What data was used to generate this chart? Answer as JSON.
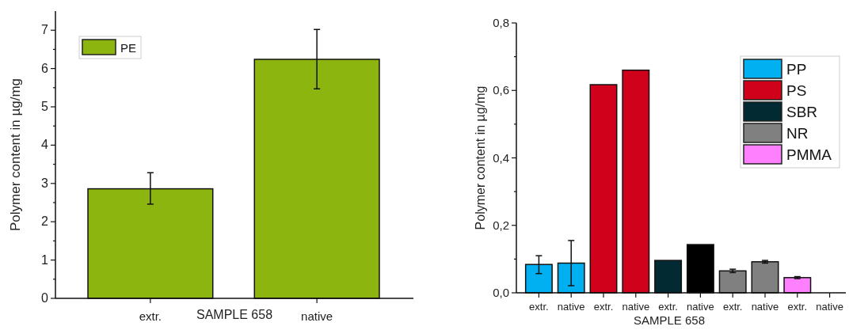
{
  "chart_data": [
    {
      "type": "bar",
      "categories": [
        "extr.",
        "native"
      ],
      "xlabel": "SAMPLE 658",
      "ylabel": "Polymer content in µg/mg",
      "ylim": [
        0,
        7.5
      ],
      "yticks": [
        0,
        {
          "value": 0.5,
          "label": null
        },
        1,
        {
          "value": 1.5,
          "label": null
        },
        2,
        {
          "value": 2.5,
          "label": null
        },
        3,
        {
          "value": 3.5,
          "label": null
        },
        4,
        {
          "value": 4.5,
          "label": null
        },
        5,
        {
          "value": 5.5,
          "label": null
        },
        6,
        {
          "value": 6.5,
          "label": null
        },
        7
      ],
      "legend": "top left",
      "series": [
        {
          "name": "PE",
          "color": "#8db510",
          "values": [
            2.86,
            6.24
          ],
          "errors": [
            [
              2.46,
              3.28
            ],
            [
              5.47,
              7.02
            ]
          ]
        }
      ]
    },
    {
      "type": "bar",
      "stacked": true,
      "categories": [
        "extr.",
        "native",
        "extr.",
        "native",
        "extr.",
        "native",
        "extr.",
        "native",
        "extr.",
        "native"
      ],
      "xlabel": "SAMPLE 658",
      "ylabel": "Polymer content in µg/mg",
      "ylim": [
        0,
        0.8
      ],
      "yticks": [
        {
          "value": 0,
          "label": "0,0"
        },
        {
          "value": 0.1,
          "label": null
        },
        {
          "value": 0.2,
          "label": "0,2"
        },
        {
          "value": 0.3,
          "label": null
        },
        {
          "value": 0.4,
          "label": "0,4"
        },
        {
          "value": 0.5,
          "label": null
        },
        {
          "value": 0.6,
          "label": "0,6"
        },
        {
          "value": 0.7,
          "label": null
        },
        {
          "value": 0.8,
          "label": "0,8"
        }
      ],
      "legend": "top right",
      "series": [
        {
          "name": "PP",
          "color": "#00b0f0",
          "values": [
            0.084,
            0.088,
            null,
            null,
            null,
            null,
            null,
            null,
            null,
            null
          ],
          "errors": [
            [
              0.057,
              0.11
            ],
            [
              0.021,
              0.155
            ],
            null,
            null,
            null,
            null,
            null,
            null,
            null,
            null
          ]
        },
        {
          "name": "PS",
          "color": "#d0021b",
          "values": [
            null,
            null,
            0.617,
            0.66,
            null,
            null,
            null,
            null,
            null,
            null
          ]
        },
        {
          "name": "SBR",
          "color": "#022a33",
          "colors": [
            null,
            null,
            null,
            null,
            "#022a33",
            "#000000",
            null,
            null,
            null,
            null
          ],
          "values": [
            null,
            null,
            null,
            null,
            0.096,
            0.143,
            null,
            null,
            null,
            null
          ]
        },
        {
          "name": "NR",
          "color": "#808080",
          "values": [
            null,
            null,
            null,
            null,
            null,
            null,
            0.065,
            0.092,
            null,
            null
          ],
          "errors": [
            null,
            null,
            null,
            null,
            null,
            null,
            [
              0.06,
              0.07
            ],
            [
              0.088,
              0.096
            ],
            null,
            null
          ]
        },
        {
          "name": "PMMA",
          "color": "#ff80ff",
          "values": [
            null,
            null,
            null,
            null,
            null,
            null,
            null,
            null,
            0.045,
            null
          ],
          "errors": [
            null,
            null,
            null,
            null,
            null,
            null,
            null,
            null,
            [
              0.042,
              0.048
            ],
            null
          ]
        }
      ]
    }
  ]
}
